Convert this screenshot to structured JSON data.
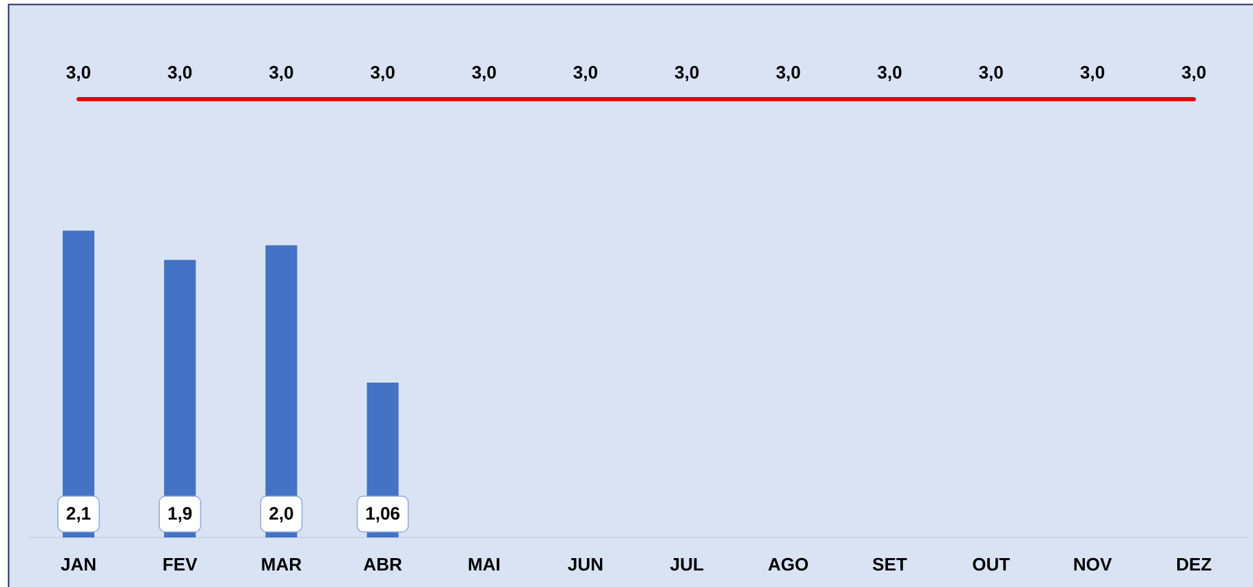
{
  "chart_data": {
    "type": "bar-line",
    "categories": [
      "JAN",
      "FEV",
      "MAR",
      "ABR",
      "MAI",
      "JUN",
      "JUL",
      "AGO",
      "SET",
      "OUT",
      "NOV",
      "DEZ"
    ],
    "series": [
      {
        "type": "bar",
        "color": "#4472c4",
        "values": [
          2.1,
          1.9,
          2.0,
          1.06,
          null,
          null,
          null,
          null,
          null,
          null,
          null,
          null
        ],
        "value_labels": [
          "2,1",
          "1,9",
          "2,0",
          "1,06",
          null,
          null,
          null,
          null,
          null,
          null,
          null,
          null
        ]
      },
      {
        "type": "line",
        "color": "#e00000",
        "values": [
          3.0,
          3.0,
          3.0,
          3.0,
          3.0,
          3.0,
          3.0,
          3.0,
          3.0,
          3.0,
          3.0,
          3.0
        ],
        "value_labels": [
          "3,0",
          "3,0",
          "3,0",
          "3,0",
          "3,0",
          "3,0",
          "3,0",
          "3,0",
          "3,0",
          "3,0",
          "3,0",
          "3,0"
        ]
      }
    ],
    "ylim": [
      0,
      3.5
    ]
  }
}
